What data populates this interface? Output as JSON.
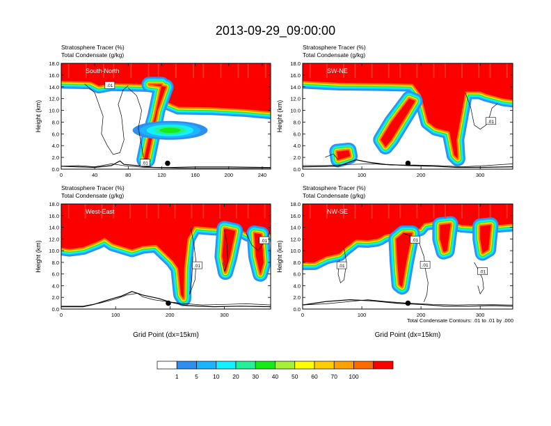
{
  "figure_title": "2013-09-29_09:00:00",
  "footnote": "Total Condensate Contours: .01 to .01 by .000",
  "chart_data": {
    "type": "heatmap",
    "title": "2013-09-29_09:00:00",
    "panels": [
      {
        "label": "South-North",
        "subtitle_line1": "Stratosphere Tracer   (%)",
        "subtitle_line2": "Total Condensate   (g/kg)",
        "ylabel": "Height (km)",
        "xlabel": "",
        "xlim": [
          0,
          250
        ],
        "ylim": [
          0,
          18
        ],
        "xticks": [
          0,
          40,
          80,
          120,
          160,
          200,
          240
        ],
        "yticks": [
          "0.0",
          "2.0",
          "4.0",
          "6.0",
          "8.0",
          "10.0",
          "12.0",
          "14.0",
          "16.0",
          "18.0"
        ],
        "marker": [
          127,
          1.0
        ],
        "contour_labels": [
          {
            "text": ".01",
            "x": 58,
            "y": 14.3
          },
          {
            "text": ".01",
            "x": 100,
            "y": 1.1
          }
        ]
      },
      {
        "label": "SW-NE",
        "subtitle_line1": "Stratosphere Tracer   (%)",
        "subtitle_line2": "Total Condensate   (g/kg)",
        "ylabel": "Height (km)",
        "xlabel": "",
        "xlim": [
          0,
          355
        ],
        "ylim": [
          0,
          18
        ],
        "xticks": [
          0,
          100,
          200,
          300
        ],
        "yticks": [
          "0.0",
          "2.0",
          "4.0",
          "6.0",
          "8.0",
          "10.0",
          "12.0",
          "14.0",
          "16.0",
          "18.0"
        ],
        "marker": [
          178,
          1.0
        ],
        "contour_labels": [
          {
            "text": ".01",
            "x": 318,
            "y": 8.2
          }
        ]
      },
      {
        "label": "West-East",
        "subtitle_line1": "Stratosphere Tracer   (%)",
        "subtitle_line2": "Total Condensate   (g/kg)",
        "ylabel": "Height (km)",
        "xlabel": "Grid Point (dx=15km)",
        "xlim": [
          0,
          385
        ],
        "ylim": [
          0,
          18
        ],
        "xticks": [
          0,
          100,
          200,
          300
        ],
        "yticks": [
          "0.0",
          "2.0",
          "4.0",
          "6.0",
          "8.0",
          "10.0",
          "12.0",
          "14.0",
          "16.0",
          "18.0"
        ],
        "marker": [
          197,
          1.0
        ],
        "contour_labels": [
          {
            "text": ".01",
            "x": 250,
            "y": 7.5
          },
          {
            "text": ".01",
            "x": 373,
            "y": 11.8
          }
        ]
      },
      {
        "label": "NW-SE",
        "subtitle_line1": "Stratosphere Tracer   (%)",
        "subtitle_line2": "Total Condensate   (g/kg)",
        "ylabel": "Height (km)",
        "xlabel": "Grid Point (dx=15km)",
        "xlim": [
          0,
          355
        ],
        "ylim": [
          0,
          18
        ],
        "xticks": [
          0,
          100,
          200,
          300
        ],
        "yticks": [
          "0.0",
          "2.0",
          "4.0",
          "6.0",
          "8.0",
          "10.0",
          "12.0",
          "14.0",
          "16.0",
          "18.0"
        ],
        "marker": [
          178,
          1.0
        ],
        "contour_labels": [
          {
            "text": ".01",
            "x": 66,
            "y": 7.5
          },
          {
            "text": ".01",
            "x": 190,
            "y": 11.9
          },
          {
            "text": ".01",
            "x": 207,
            "y": 7.6
          },
          {
            "text": ".01",
            "x": 304,
            "y": 6.5
          }
        ]
      }
    ],
    "colorbar": {
      "levels": [
        "1",
        "5",
        "10",
        "20",
        "30",
        "40",
        "50",
        "60",
        "70",
        "100"
      ],
      "colors": [
        "#ffffff",
        "#2f8fef",
        "#1ab4ff",
        "#13f0ff",
        "#24f09a",
        "#18ea18",
        "#a8f038",
        "#ffff00",
        "#fcd000",
        "#fca200",
        "#fc6a00",
        "#fc0000"
      ]
    }
  }
}
